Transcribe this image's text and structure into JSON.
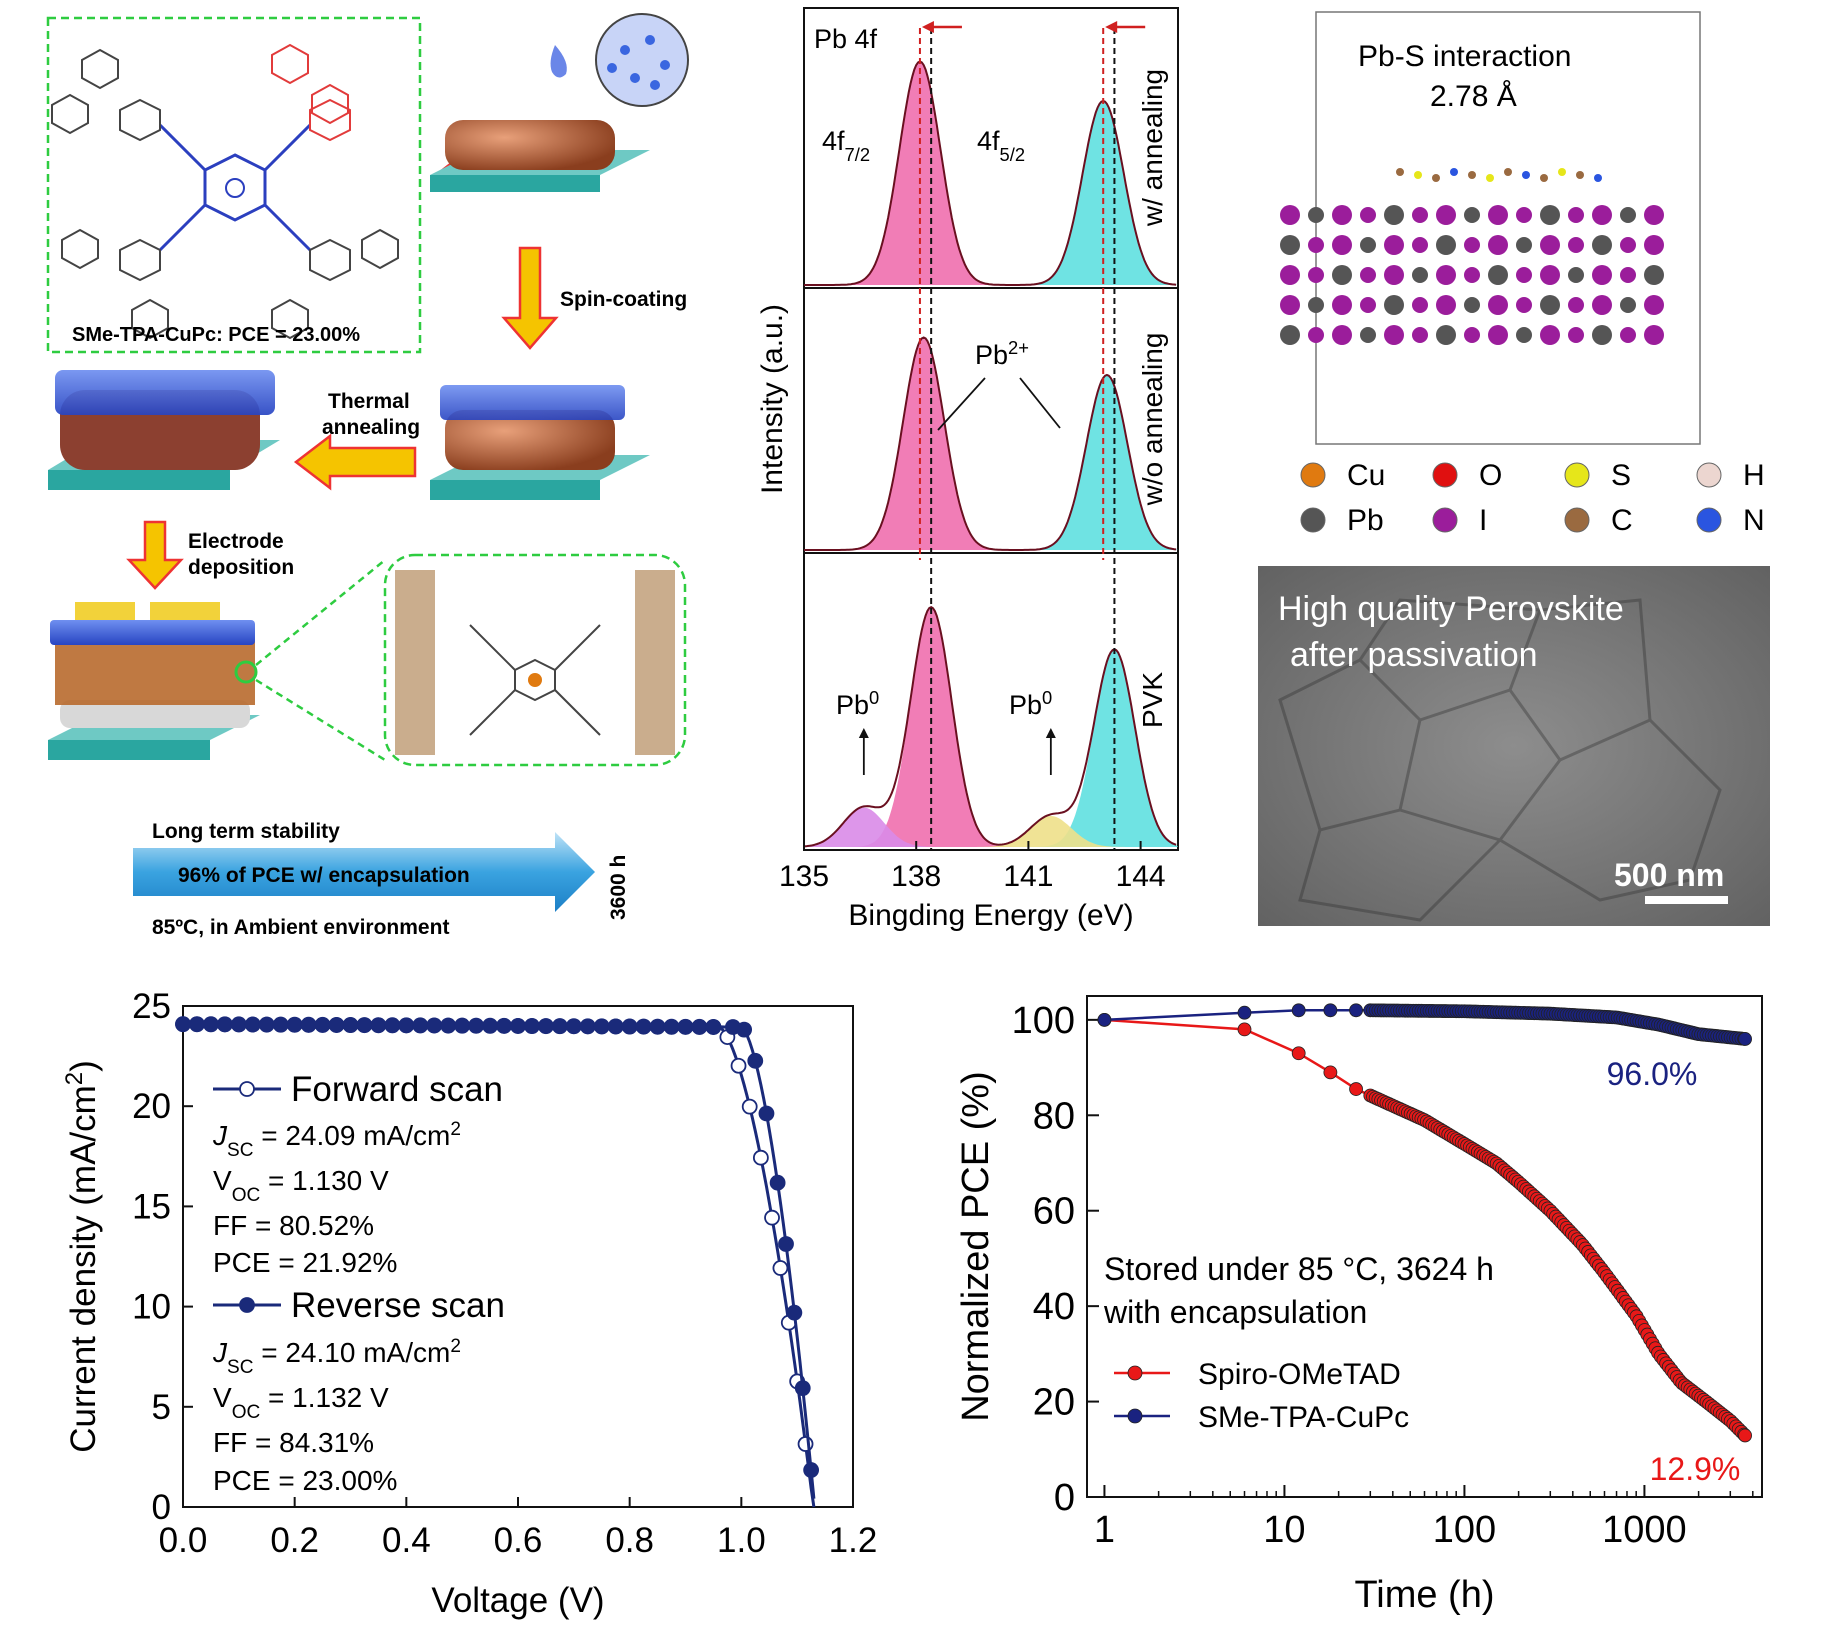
{
  "schematic": {
    "molecule_label": "SMe-TPA-CuPc: PCE = 23.00%",
    "step_spin": "Spin-coating",
    "step_thermal_1": "Thermal",
    "step_thermal_2": "annealing",
    "step_electrode_1": "Electrode",
    "step_electrode_2": "deposition",
    "stability_title": "Long term stability",
    "stability_arrow": "96% of PCE w/ encapsulation",
    "stability_cond": "85ºC, in Ambient environment",
    "stability_time": "3600 h",
    "colors": {
      "blue_layer": "#3a5fd9",
      "perovskite": "#b8623a",
      "substrate": "#3fb6b0",
      "arrow": "#f5c400",
      "dashed": "#2ecc40"
    }
  },
  "dft": {
    "title_1": "Pb-S interaction",
    "title_2": "2.78 Å",
    "legend": [
      {
        "sym": "Cu",
        "color": "#e07a10"
      },
      {
        "sym": "O",
        "color": "#e01010"
      },
      {
        "sym": "S",
        "color": "#e6e61a"
      },
      {
        "sym": "H",
        "color": "#ecd6d0"
      },
      {
        "sym": "Pb",
        "color": "#555555"
      },
      {
        "sym": "I",
        "color": "#9b1d9b"
      },
      {
        "sym": "C",
        "color": "#9a6a40"
      },
      {
        "sym": "N",
        "color": "#2a55e0"
      }
    ]
  },
  "sem": {
    "caption_1": "High quality Perovskite",
    "caption_2": "after passivation",
    "scale": "500 nm"
  },
  "chart_data": [
    {
      "type": "line",
      "id": "xps",
      "xlabel": "Bingding Energy (eV)",
      "ylabel": "Intensity (a.u.)",
      "xlim": [
        135,
        145
      ],
      "xticks": [
        135,
        138,
        141,
        144
      ],
      "panels": [
        {
          "name": "w/ annealing",
          "peak1": {
            "center": 138.1,
            "height": 0.85
          },
          "peak2": {
            "center": 143.0,
            "height": 0.7
          }
        },
        {
          "name": "w/o annealing",
          "peak1": {
            "center": 138.2,
            "height": 0.85
          },
          "peak2": {
            "center": 143.1,
            "height": 0.7
          }
        },
        {
          "name": "PVK",
          "peak1": {
            "center": 138.4,
            "height": 0.85
          },
          "peak2": {
            "center": 143.3,
            "height": 0.7
          },
          "pb0_1": {
            "center": 136.6,
            "height": 0.14
          },
          "pb0_2": {
            "center": 141.6,
            "height": 0.11
          }
        }
      ],
      "annotations": {
        "pb4f": "Pb 4f",
        "f72": "4f",
        "f72_sub": "7/2",
        "f52": "4f",
        "f52_sub": "5/2",
        "pb2": "Pb",
        "pb2_sup": "2+",
        "pb0": "Pb",
        "pb0_sup": "0"
      },
      "ref_lines": {
        "red": [
          138.1,
          143.0
        ],
        "black": [
          138.4,
          143.3
        ]
      },
      "colors": {
        "pink": "#ef6fae",
        "cyan": "#5fe0e0",
        "violet": "#d98be8",
        "yellow": "#eee08a",
        "outline": "#6a1020"
      }
    },
    {
      "type": "line",
      "id": "jv",
      "xlabel": "Voltage (V)",
      "ylabel": "Current density (mA/cm",
      "ylabel_sup": "2",
      "ylabel_end": ")",
      "xlim": [
        0.0,
        1.2
      ],
      "ylim": [
        0,
        25
      ],
      "xticks": [
        "0.0",
        "0.2",
        "0.4",
        "0.6",
        "0.8",
        "1.0",
        "1.2"
      ],
      "yticks": [
        "0",
        "5",
        "10",
        "15",
        "20",
        "25"
      ],
      "series": [
        {
          "name": "Forward scan",
          "jsc": 24.09,
          "voc": 1.13,
          "knee": 0.96,
          "filled": false
        },
        {
          "name": "Reverse scan",
          "jsc": 24.1,
          "voc": 1.132,
          "knee": 1.0,
          "filled": true
        }
      ],
      "legend_text": {
        "fwd_jsc_pre": "J",
        "fwd_jsc_sub": "SC",
        "fwd_jsc": " = 24.09 mA/cm",
        "fwd_jsc_sup": "2",
        "fwd_voc_pre": "V",
        "fwd_voc_sub": "OC",
        "fwd_voc": " = 1.130 V",
        "fwd_ff": "FF = 80.52%",
        "fwd_pce": "PCE = 21.92%",
        "rev_jsc_pre": "J",
        "rev_jsc_sub": "SC",
        "rev_jsc": " = 24.10 mA/cm",
        "rev_jsc_sup": "2",
        "rev_voc_pre": "V",
        "rev_voc_sub": "OC",
        "rev_voc": " = 1.132 V",
        "rev_ff": "FF = 84.31%",
        "rev_pce": "PCE = 23.00%"
      },
      "color": "#1a2a7a"
    },
    {
      "type": "line",
      "id": "stability",
      "xlabel": "Time (h)",
      "ylabel": "Normalized PCE (%)",
      "xscale": "log",
      "xlim": [
        0.8,
        4500
      ],
      "ylim": [
        0,
        105
      ],
      "xticks": [
        {
          "v": 1,
          "label": "1"
        },
        {
          "v": 10,
          "label": "10"
        },
        {
          "v": 100,
          "label": "100"
        },
        {
          "v": 1000,
          "label": "1000"
        }
      ],
      "yticks": [
        "0",
        "20",
        "40",
        "60",
        "80",
        "100"
      ],
      "annotation_1": "Stored under 85 °C, 3624 h",
      "annotation_2": "with encapsulation",
      "series": [
        {
          "name": "Spiro-OMeTAD",
          "color": "#e81818",
          "end_label": "12.9%",
          "points": [
            [
              1,
              100
            ],
            [
              6,
              98
            ],
            [
              12,
              93
            ],
            [
              18,
              89
            ],
            [
              25,
              85.5
            ],
            [
              40,
              82
            ],
            [
              60,
              79
            ],
            [
              100,
              74
            ],
            [
              150,
              70
            ],
            [
              200,
              66
            ],
            [
              300,
              60
            ],
            [
              450,
              53
            ],
            [
              600,
              47
            ],
            [
              900,
              38
            ],
            [
              1200,
              30
            ],
            [
              1600,
              24
            ],
            [
              2200,
              20
            ],
            [
              3000,
              16
            ],
            [
              3624,
              12.9
            ]
          ]
        },
        {
          "name": "SMe-TPA-CuPc",
          "color": "#1a2280",
          "end_label": "96.0%",
          "points": [
            [
              1,
              100
            ],
            [
              6,
              101.5
            ],
            [
              12,
              102
            ],
            [
              30,
              102
            ],
            [
              100,
              101.8
            ],
            [
              300,
              101.3
            ],
            [
              700,
              100.5
            ],
            [
              1200,
              99
            ],
            [
              2000,
              97
            ],
            [
              3624,
              96.0
            ]
          ]
        }
      ]
    }
  ]
}
